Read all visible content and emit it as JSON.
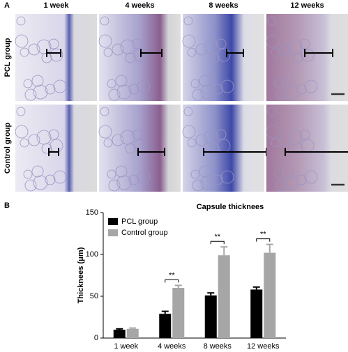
{
  "panel_a": {
    "label": "A",
    "columns": [
      "1 week",
      "4 weeks",
      "8 weeks",
      "12 weeks"
    ],
    "rows": [
      "PCL group",
      "Control group"
    ]
  },
  "panel_b_label": "B",
  "chart_data": {
    "type": "bar",
    "title": "Capsule thicknees",
    "y_label": "Thicknees (μm)",
    "categories": [
      "1 week",
      "4 weeks",
      "8 weeks",
      "12 weeks"
    ],
    "series": [
      {
        "name": "PCL group",
        "color": "#000000",
        "values": [
          10,
          29,
          51,
          58
        ],
        "errors": [
          1,
          3,
          3,
          3
        ]
      },
      {
        "name": "Control group",
        "color": "#a6a6a6",
        "values": [
          11,
          60,
          99,
          102
        ],
        "errors": [
          1,
          3,
          10,
          10
        ]
      }
    ],
    "significance": [
      null,
      "**",
      "**",
      "**"
    ],
    "ylim": [
      0,
      150
    ],
    "yticks": [
      0,
      50,
      100,
      150
    ],
    "legend": "upper-left"
  }
}
